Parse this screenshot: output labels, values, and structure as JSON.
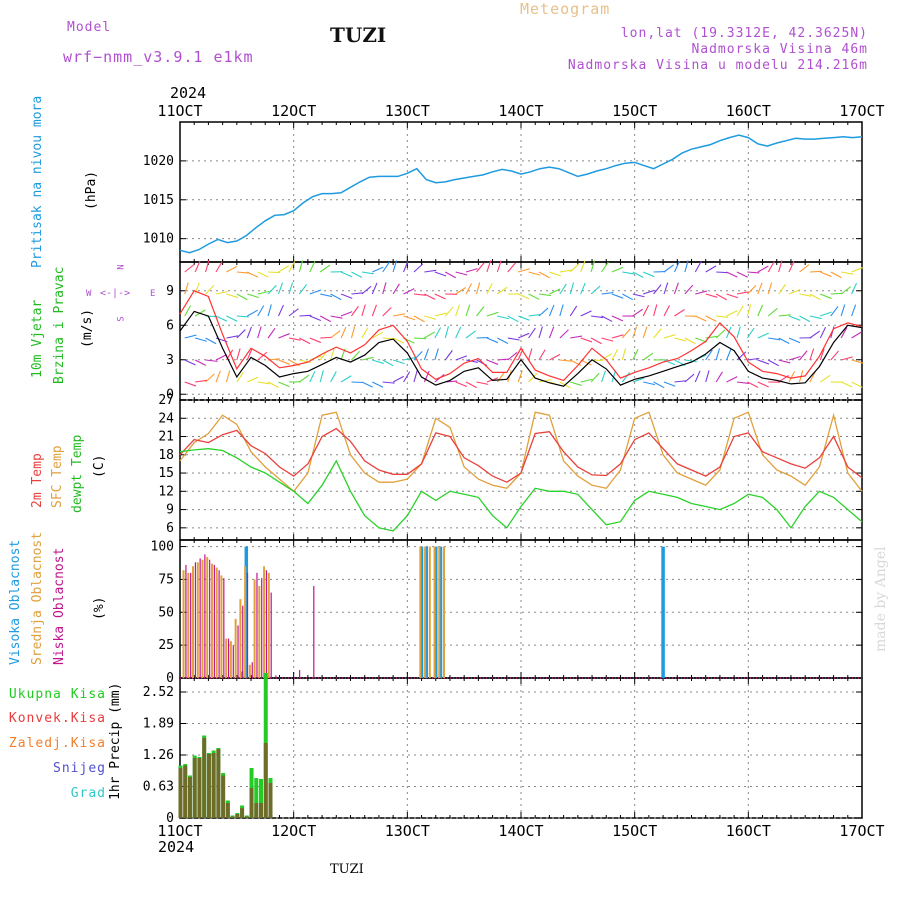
{
  "header": {
    "model_label": "Model",
    "model_value": "wrf−nmm_v3.9.1  e1km",
    "title": "TUZI",
    "meteogram_label": "Meteogram",
    "lonlat": "lon,lat (19.3312E, 42.3625N)",
    "altitude": "Nadmorska Visina 46m",
    "model_altitude": "Nadmorska Visina u modelu 214.216m",
    "year_top": "2024",
    "year_bottom": "2024",
    "footer_title": "TUZI",
    "watermark": "made by Angel"
  },
  "legend_labels": {
    "pressure": "Pritisak na nivou mora",
    "pressure_unit": "(hPa)",
    "wind_a": "10m Vjetar",
    "wind_b": "Brzina i Pravac",
    "wind_unit": "(m/s)",
    "compass_n": "N",
    "compass_s": "S",
    "compass_w": "W",
    "compass_e": "E",
    "temp_2m": "2m Temp",
    "temp_sfc": "SFC Temp",
    "temp_dewpt": "dewpt Temp",
    "temp_unit": "(C)",
    "cloud_high": "Visoka Oblacnost",
    "cloud_mid": "Srednja Oblacnost",
    "cloud_low": "Niska Oblacnost",
    "cloud_unit": "(%)",
    "precip_unit": "1hr Precip (mm)",
    "precip_total": "Ukupna Kisa",
    "precip_conv": "Konvek.Kisa",
    "precip_frz": "Zaledj.Kisa",
    "precip_snow": "Snijeg",
    "precip_hail": "Grad"
  },
  "colors": {
    "pressure": "#1e9be0",
    "wind_label": "#22bb22",
    "wind_speed": "#000000",
    "wind_gust": "#ff3333",
    "temp_2m": "#e8413c",
    "temp_sfc": "#e0a03c",
    "temp_dewpt": "#2bd12b",
    "cloud_high": "#1e9be0",
    "cloud_mid": "#e0a03c",
    "cloud_low": "#c0148c",
    "precip_total": "#22cc22",
    "precip_conv": "#e83c3c",
    "precip_frz": "#f08030",
    "precip_snow": "#5050d0",
    "precip_hail": "#30c8c8",
    "compass": "#b050d0"
  },
  "chart_data": [
    {
      "type": "line",
      "panel": "pressure",
      "x_ticks": [
        "11OCT",
        "12OCT",
        "13OCT",
        "14OCT",
        "15OCT",
        "16OCT",
        "17OCT"
      ],
      "yticks": [
        1010,
        1015,
        1020
      ],
      "ylim": [
        1007,
        1025
      ],
      "xlim": [
        0,
        144
      ],
      "grid": true,
      "series": [
        {
          "x": [
            0,
            2,
            4,
            6,
            8,
            10,
            12,
            14,
            16,
            18,
            20,
            22,
            24,
            26,
            28,
            30,
            32,
            34,
            36,
            38,
            40,
            42,
            44,
            46,
            48,
            50,
            52,
            54,
            56,
            58,
            60,
            62,
            64,
            66,
            68,
            70,
            72,
            74,
            76,
            78,
            80,
            82,
            84,
            86,
            88,
            90,
            92,
            94,
            96,
            98,
            100,
            102,
            104,
            106,
            108,
            110,
            112,
            114,
            116,
            118,
            120,
            122,
            124,
            126,
            128,
            130,
            132,
            134,
            136,
            138,
            140,
            142,
            144
          ],
          "values": [
            1008.5,
            1008.2,
            1008.6,
            1009.3,
            1009.9,
            1009.5,
            1009.7,
            1010.4,
            1011.4,
            1012.3,
            1013.0,
            1013.1,
            1013.6,
            1014.6,
            1015.4,
            1015.8,
            1015.8,
            1015.9,
            1016.6,
            1017.3,
            1017.9,
            1018.0,
            1018.0,
            1018.0,
            1018.4,
            1019.0,
            1017.6,
            1017.2,
            1017.3,
            1017.6,
            1017.8,
            1018.0,
            1018.2,
            1018.6,
            1018.9,
            1018.7,
            1018.3,
            1018.6,
            1019.0,
            1019.2,
            1019.0,
            1018.5,
            1018.0,
            1018.3,
            1018.7,
            1019.0,
            1019.4,
            1019.7,
            1019.8,
            1019.4,
            1019.0,
            1019.6,
            1020.2,
            1021.0,
            1021.5,
            1021.8,
            1022.1,
            1022.6,
            1023.0,
            1023.3,
            1023.0,
            1022.2,
            1021.9,
            1022.3,
            1022.6,
            1022.9,
            1022.8,
            1022.8,
            1022.9,
            1023.0,
            1023.1,
            1023.0,
            1023.1
          ]
        }
      ]
    },
    {
      "type": "line",
      "panel": "wind",
      "x_ticks": [
        "11OCT",
        "12OCT",
        "13OCT",
        "14OCT",
        "15OCT",
        "16OCT",
        "17OCT"
      ],
      "yticks": [
        0,
        3,
        6,
        9
      ],
      "ylim": [
        -0.5,
        11.5
      ],
      "xlim": [
        0,
        144
      ],
      "grid": true,
      "series": [
        {
          "name": "speed",
          "x": [
            0,
            3,
            6,
            9,
            12,
            15,
            18,
            21,
            24,
            27,
            30,
            33,
            36,
            39,
            42,
            45,
            48,
            51,
            54,
            57,
            60,
            63,
            66,
            69,
            72,
            75,
            78,
            81,
            84,
            87,
            90,
            93,
            96,
            99,
            102,
            105,
            108,
            111,
            114,
            117,
            120,
            123,
            126,
            129,
            132,
            135,
            138,
            141,
            144
          ],
          "values": [
            5.5,
            7.2,
            6.8,
            4.0,
            1.5,
            3.2,
            2.5,
            1.5,
            1.8,
            2.0,
            2.6,
            3.2,
            2.8,
            3.4,
            4.5,
            4.8,
            3.6,
            1.5,
            0.8,
            1.2,
            2.0,
            2.3,
            1.2,
            1.3,
            3.0,
            1.4,
            1.0,
            0.7,
            1.8,
            3.0,
            2.2,
            0.8,
            1.3,
            1.6,
            2.0,
            2.4,
            2.8,
            3.5,
            4.5,
            3.8,
            2.0,
            1.4,
            1.2,
            0.9,
            1.0,
            2.4,
            4.5,
            6.0,
            5.8
          ]
        },
        {
          "name": "gust",
          "x": [
            0,
            3,
            6,
            9,
            12,
            15,
            18,
            21,
            24,
            27,
            30,
            33,
            36,
            39,
            42,
            45,
            48,
            51,
            54,
            57,
            60,
            63,
            66,
            69,
            72,
            75,
            78,
            81,
            84,
            87,
            90,
            93,
            96,
            99,
            102,
            105,
            108,
            111,
            114,
            117,
            120,
            123,
            126,
            129,
            132,
            135,
            138,
            141,
            144
          ],
          "values": [
            7.0,
            9.0,
            8.5,
            5.2,
            2.2,
            4.0,
            3.3,
            2.3,
            2.5,
            2.8,
            3.5,
            4.1,
            3.6,
            4.3,
            5.6,
            6.0,
            4.6,
            2.2,
            1.3,
            1.8,
            2.7,
            3.1,
            1.9,
            1.9,
            4.0,
            2.1,
            1.6,
            1.2,
            2.5,
            4.0,
            3.0,
            1.4,
            1.9,
            2.3,
            2.8,
            3.1,
            3.8,
            4.6,
            6.2,
            5.0,
            2.8,
            2.0,
            1.8,
            1.4,
            1.6,
            3.3,
            5.7,
            6.2,
            5.9
          ]
        }
      ]
    },
    {
      "type": "line",
      "panel": "temperature",
      "x_ticks": [
        "11OCT",
        "12OCT",
        "13OCT",
        "14OCT",
        "15OCT",
        "16OCT",
        "17OCT"
      ],
      "yticks": [
        6,
        9,
        12,
        15,
        18,
        21,
        24,
        27
      ],
      "ylim": [
        4,
        27
      ],
      "xlim": [
        0,
        144
      ],
      "grid": true,
      "series": [
        {
          "name": "2m Temp",
          "x": [
            0,
            3,
            6,
            9,
            12,
            15,
            18,
            21,
            24,
            27,
            30,
            33,
            36,
            39,
            42,
            45,
            48,
            51,
            54,
            57,
            60,
            63,
            66,
            69,
            72,
            75,
            78,
            81,
            84,
            87,
            90,
            93,
            96,
            99,
            102,
            105,
            108,
            111,
            114,
            117,
            120,
            123,
            126,
            129,
            132,
            135,
            138,
            141,
            144
          ],
          "values": [
            18.0,
            20.5,
            20.0,
            21.3,
            22.0,
            19.5,
            18.2,
            16.0,
            14.5,
            16.5,
            21.0,
            22.3,
            20.2,
            17.0,
            15.5,
            14.8,
            14.8,
            16.5,
            21.6,
            21.0,
            17.5,
            16.2,
            14.5,
            13.5,
            15.0,
            21.5,
            21.8,
            18.5,
            16.0,
            14.7,
            14.6,
            16.5,
            20.5,
            21.6,
            19.0,
            16.5,
            15.5,
            14.5,
            16.0,
            21.0,
            21.6,
            18.5,
            17.5,
            16.5,
            15.8,
            17.5,
            21.0,
            16.0,
            14.2
          ]
        },
        {
          "name": "SFC Temp",
          "x": [
            0,
            3,
            6,
            9,
            12,
            15,
            18,
            21,
            24,
            27,
            30,
            33,
            36,
            39,
            42,
            45,
            48,
            51,
            54,
            57,
            60,
            63,
            66,
            69,
            72,
            75,
            78,
            81,
            84,
            87,
            90,
            93,
            96,
            99,
            102,
            105,
            108,
            111,
            114,
            117,
            120,
            123,
            126,
            129,
            132,
            135,
            138,
            141,
            144
          ],
          "values": [
            17.0,
            20.0,
            21.5,
            24.5,
            23.0,
            18.5,
            16.0,
            14.0,
            12.0,
            15.0,
            24.5,
            25.0,
            18.0,
            15.0,
            13.5,
            13.5,
            14.0,
            16.5,
            24.0,
            22.5,
            16.0,
            14.0,
            13.0,
            12.5,
            15.0,
            25.0,
            24.5,
            17.0,
            14.5,
            13.0,
            12.5,
            15.5,
            24.0,
            25.0,
            18.0,
            15.0,
            14.0,
            13.0,
            15.5,
            24.0,
            25.0,
            18.0,
            15.5,
            14.5,
            13.0,
            16.0,
            24.5,
            15.0,
            12.0
          ]
        },
        {
          "name": "dewpt Temp",
          "x": [
            0,
            3,
            6,
            9,
            12,
            15,
            18,
            21,
            24,
            27,
            30,
            33,
            36,
            39,
            42,
            45,
            48,
            51,
            54,
            57,
            60,
            63,
            66,
            69,
            72,
            75,
            78,
            81,
            84,
            87,
            90,
            93,
            96,
            99,
            102,
            105,
            108,
            111,
            114,
            117,
            120,
            123,
            126,
            129,
            132,
            135,
            138,
            141,
            144
          ],
          "values": [
            18.5,
            18.8,
            19.0,
            18.7,
            17.5,
            16.0,
            15.0,
            13.5,
            12.0,
            10.0,
            13.0,
            17.0,
            12.0,
            8.0,
            6.0,
            5.5,
            8.0,
            12.0,
            10.5,
            12.0,
            11.5,
            11.0,
            8.0,
            6.0,
            9.5,
            12.5,
            12.0,
            12.0,
            11.5,
            9.0,
            6.5,
            7.0,
            10.5,
            12.0,
            11.5,
            11.0,
            10.0,
            9.5,
            9.0,
            10.0,
            11.5,
            11.0,
            9.0,
            6.0,
            9.5,
            12.0,
            11.0,
            9.0,
            7.0
          ]
        }
      ]
    },
    {
      "type": "bar",
      "panel": "clouds",
      "x_ticks": [
        "11OCT",
        "12OCT",
        "13OCT",
        "14OCT",
        "15OCT",
        "16OCT",
        "17OCT"
      ],
      "yticks": [
        0,
        25,
        50,
        75,
        100
      ],
      "ylim": [
        0,
        105
      ],
      "xlim": [
        0,
        144
      ],
      "grid": true,
      "series": [
        {
          "name": "Visoka Oblacnost",
          "x": [
            13,
            14,
            51,
            52,
            54,
            55,
            102
          ],
          "values": [
            5,
            100,
            100,
            100,
            100,
            100,
            100
          ]
        },
        {
          "name": "Srednja Oblacnost",
          "x": [
            1,
            2,
            3,
            4,
            5,
            6,
            7,
            8,
            9,
            10,
            11,
            12,
            13,
            14,
            15,
            16,
            17,
            18,
            19,
            51,
            52,
            53,
            54,
            55,
            56
          ],
          "values": [
            82,
            80,
            85,
            88,
            90,
            92,
            87,
            84,
            78,
            30,
            28,
            45,
            60,
            85,
            10,
            75,
            70,
            85,
            80,
            100,
            100,
            100,
            100,
            100,
            100
          ]
        },
        {
          "name": "Niska Oblacnost",
          "x": [
            1,
            2,
            3,
            4,
            5,
            6,
            7,
            8,
            9,
            10,
            11,
            12,
            13,
            14,
            15,
            16,
            17,
            18,
            19,
            20,
            25,
            28
          ],
          "values": [
            86,
            80,
            88,
            91,
            94,
            90,
            86,
            82,
            76,
            30,
            25,
            40,
            55,
            80,
            12,
            80,
            76,
            82,
            65,
            2,
            6,
            70
          ]
        }
      ]
    },
    {
      "type": "bar",
      "panel": "precipitation",
      "x_ticks": [
        "11OCT",
        "12OCT",
        "13OCT",
        "14OCT",
        "15OCT",
        "16OCT",
        "17OCT"
      ],
      "yticks": [
        0,
        0.63,
        1.26,
        1.89,
        2.52
      ],
      "ylim": [
        0,
        2.8
      ],
      "xlim": [
        0,
        144
      ],
      "grid": true,
      "series": [
        {
          "name": "Ukupna Kisa",
          "x": [
            0,
            1,
            2,
            3,
            4,
            5,
            6,
            7,
            8,
            9,
            10,
            11,
            12,
            13,
            14,
            15,
            16,
            17,
            18,
            19
          ],
          "values": [
            1.05,
            1.08,
            0.85,
            1.25,
            1.22,
            1.65,
            1.3,
            1.35,
            1.4,
            0.9,
            0.35,
            0.05,
            0.1,
            0.25,
            0.05,
            1.0,
            0.8,
            0.78,
            2.9,
            0.8
          ]
        },
        {
          "name": "Konvek.Kisa",
          "x": [
            0,
            1,
            2,
            3,
            4,
            5,
            6,
            7,
            8,
            9,
            10,
            11,
            12,
            13,
            14,
            15,
            16,
            17,
            18,
            19
          ],
          "values": [
            1.0,
            1.05,
            0.82,
            1.2,
            1.2,
            1.6,
            1.28,
            1.3,
            1.38,
            0.85,
            0.3,
            0.03,
            0.08,
            0.2,
            0.03,
            0.6,
            0.3,
            0.3,
            1.5,
            0.7
          ]
        }
      ]
    }
  ]
}
